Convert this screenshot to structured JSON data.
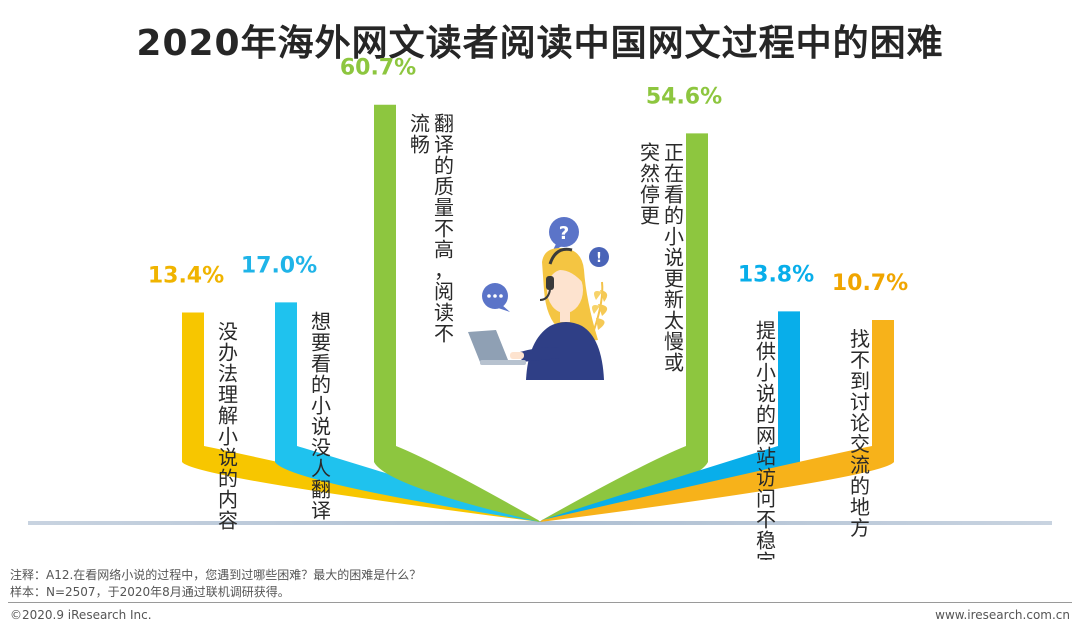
{
  "title": "2020年海外网文读者阅读中国网文过程中的困难",
  "chart_data": {
    "type": "bar",
    "unit": "%",
    "categories": [
      "没办法理解小说的内容",
      "想要看的小说没人翻译",
      "翻译的质量不高，阅读不流畅",
      "正在看的小说更新太慢或突然停更",
      "提供小说的网站访问不稳定",
      "找不到讨论交流的地方"
    ],
    "values": [
      13.4,
      17.0,
      60.7,
      54.6,
      13.8,
      10.7
    ],
    "value_labels": [
      "13.4%",
      "17.0%",
      "60.7%",
      "54.6%",
      "13.8%",
      "10.7%"
    ],
    "label_columns": [
      [
        "没办法理解小说的内容"
      ],
      [
        "想要看的小说没人翻译"
      ],
      [
        "翻译的质量不高，阅读不",
        "流畅"
      ],
      [
        "正在看的小说更新太慢或",
        "突然停更"
      ],
      [
        "提供小说的网站访问不稳定"
      ],
      [
        "找不到讨论交流的地方"
      ]
    ],
    "colors": [
      "#f7c600",
      "#1fc2ee",
      "#8dc63f",
      "#8dc63f",
      "#08aeea",
      "#f7b21a"
    ],
    "label_colors": [
      "#f0b400",
      "#1fb4e8",
      "#8dc63f",
      "#8dc63f",
      "#08aeea",
      "#f0a500"
    ]
  },
  "footer": {
    "note": "注释：A12.在看网络小说的过程中，您遇到过哪些困难？最大的困难是什么？",
    "sample": "样本：N=2507，于2020年8月通过联机调研获得。",
    "copyright": "©2020.9 iResearch Inc.",
    "website": "www.iresearch.com.cn"
  }
}
